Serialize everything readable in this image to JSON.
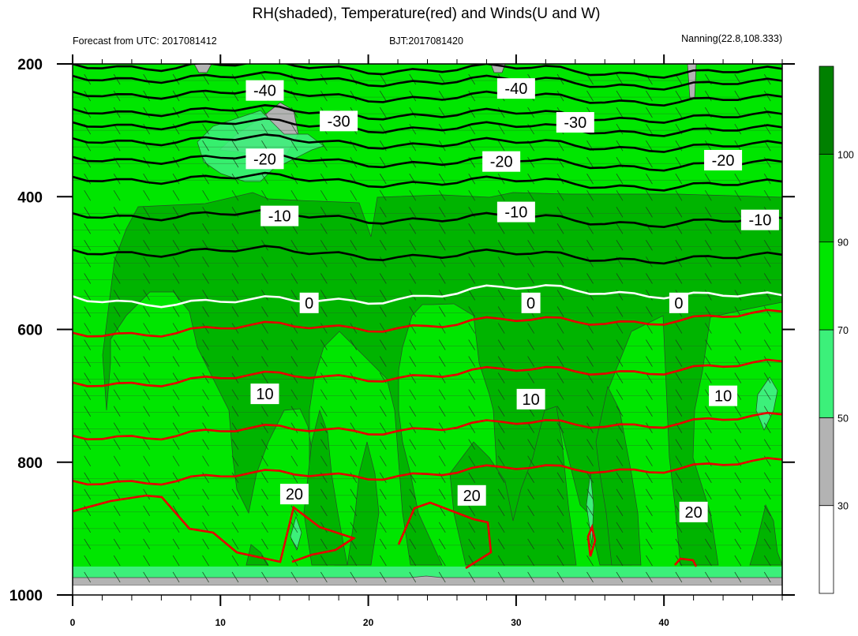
{
  "title": "RH(shaded), Temperature(red) and Winds(U and W)",
  "left_string": "Forecast from UTC: 2017081412",
  "center_string": "BJT:2017081420",
  "right_string": "Nanning(22.8,108.333)",
  "chart_data": {
    "type": "contour",
    "x": {
      "range": [
        0,
        48
      ],
      "ticks": [
        0,
        10,
        20,
        30,
        40
      ],
      "tick_labels": [
        "0",
        "10",
        "20",
        "30",
        "40"
      ]
    },
    "y": {
      "range": [
        1000,
        200
      ],
      "ticks": [
        200,
        400,
        600,
        800,
        1000
      ],
      "tick_labels": [
        "200",
        "400",
        "600",
        "800",
        "1000"
      ]
    },
    "colorbar": {
      "levels": [
        30,
        50,
        70,
        90,
        100
      ],
      "colors": [
        "#ffffff",
        "#b3b3b3",
        "#3cf07a",
        "#00e600",
        "#00b400",
        "#008000"
      ],
      "tick_labels": [
        "30",
        "50",
        "70",
        "90",
        "100"
      ]
    },
    "temperature_contours": [
      {
        "level": -40,
        "label": "-40",
        "color": "#000000",
        "label_positions": [
          {
            "x": 13.0,
            "p": 240
          },
          {
            "x": 30.0,
            "p": 237
          }
        ]
      },
      {
        "level": -30,
        "label": "-30",
        "color": "#000000",
        "label_positions": [
          {
            "x": 18.0,
            "p": 286
          },
          {
            "x": 34.0,
            "p": 288
          }
        ]
      },
      {
        "level": -20,
        "label": "-20",
        "color": "#000000",
        "label_positions": [
          {
            "x": 13.0,
            "p": 343
          },
          {
            "x": 29.0,
            "p": 347
          },
          {
            "x": 44.0,
            "p": 345
          }
        ]
      },
      {
        "level": -10,
        "label": "-10",
        "color": "#000000",
        "label_positions": [
          {
            "x": 14.0,
            "p": 429
          },
          {
            "x": 30.0,
            "p": 423
          },
          {
            "x": 46.5,
            "p": 435
          }
        ]
      },
      {
        "level": 0,
        "label": "0",
        "color": "#ffffff",
        "label_positions": [
          {
            "x": 16.0,
            "p": 560
          },
          {
            "x": 31.0,
            "p": 560
          },
          {
            "x": 41.0,
            "p": 560
          }
        ]
      },
      {
        "level": 10,
        "label": "10",
        "color": "#e60000",
        "label_positions": [
          {
            "x": 13.0,
            "p": 697
          },
          {
            "x": 31.0,
            "p": 705
          },
          {
            "x": 44.0,
            "p": 700
          }
        ]
      },
      {
        "level": 20,
        "label": "20",
        "color": "#e60000",
        "label_positions": [
          {
            "x": 15.0,
            "p": 848
          },
          {
            "x": 27.0,
            "p": 850
          },
          {
            "x": 42.0,
            "p": 875
          }
        ]
      }
    ]
  }
}
